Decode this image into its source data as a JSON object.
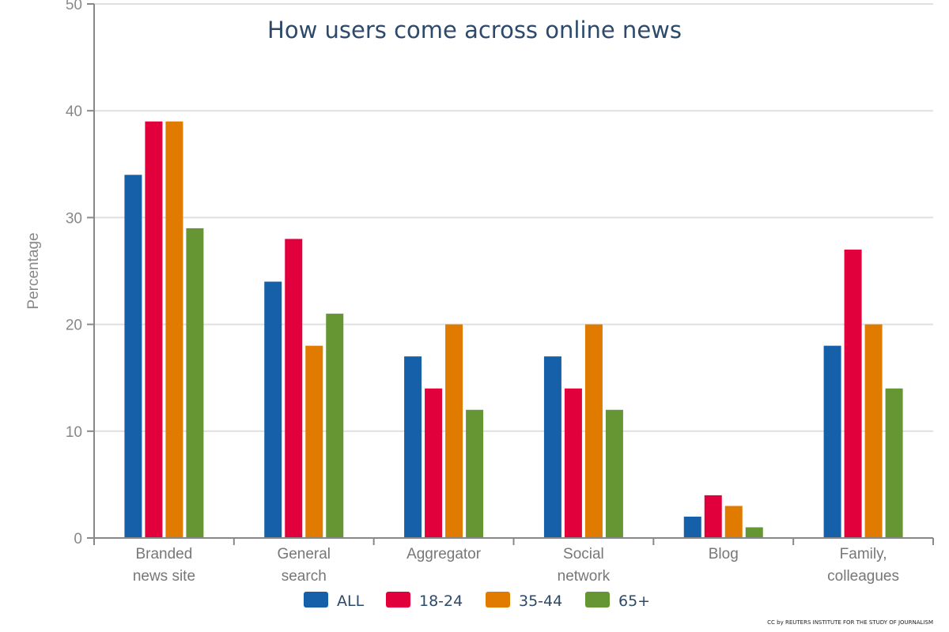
{
  "chart_data": {
    "type": "bar",
    "title": "How users come across online news",
    "xlabel": "",
    "ylabel": "Percentage",
    "ylim": [
      0,
      50
    ],
    "yticks": [
      0,
      10,
      20,
      30,
      40,
      50
    ],
    "grid": true,
    "legend_position": "bottom",
    "categories": [
      [
        "Branded",
        "news site"
      ],
      [
        "General",
        "search"
      ],
      [
        "Aggregator"
      ],
      [
        "Social",
        "network"
      ],
      [
        "Blog"
      ],
      [
        "Family,",
        "colleagues"
      ]
    ],
    "series": [
      {
        "name": "ALL",
        "color": "#1560a8",
        "values": [
          34,
          24,
          17,
          17,
          2,
          18
        ]
      },
      {
        "name": "18-24",
        "color": "#e2003c",
        "values": [
          39,
          28,
          14,
          14,
          4,
          27
        ]
      },
      {
        "name": "35-44",
        "color": "#e07b00",
        "values": [
          39,
          18,
          20,
          20,
          3,
          20
        ]
      },
      {
        "name": "65+",
        "color": "#669533",
        "values": [
          29,
          21,
          12,
          12,
          1,
          14
        ]
      }
    ],
    "credit": "CC by REUTERS INSTITUTE FOR THE STUDY OF JOURNALISM"
  }
}
